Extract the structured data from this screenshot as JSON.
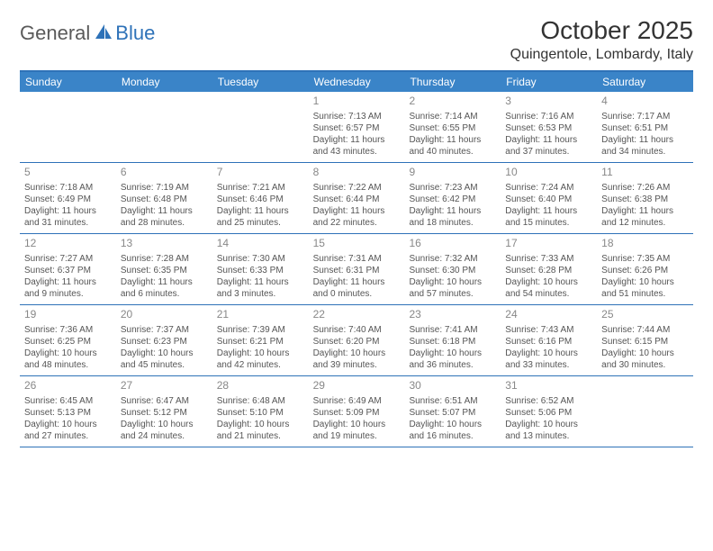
{
  "logo": {
    "text1": "General",
    "text2": "Blue"
  },
  "title": "October 2025",
  "location": "Quingentole, Lombardy, Italy",
  "colors": {
    "header_bg": "#3a84c8",
    "border": "#2e72b8",
    "logo_gray": "#5a5a5a",
    "logo_blue": "#2e72b8",
    "text": "#555555",
    "daynum": "#888888"
  },
  "weekdays": [
    "Sunday",
    "Monday",
    "Tuesday",
    "Wednesday",
    "Thursday",
    "Friday",
    "Saturday"
  ],
  "weeks": [
    [
      {
        "n": "",
        "sr": "",
        "ss": "",
        "dl1": "",
        "dl2": ""
      },
      {
        "n": "",
        "sr": "",
        "ss": "",
        "dl1": "",
        "dl2": ""
      },
      {
        "n": "",
        "sr": "",
        "ss": "",
        "dl1": "",
        "dl2": ""
      },
      {
        "n": "1",
        "sr": "Sunrise: 7:13 AM",
        "ss": "Sunset: 6:57 PM",
        "dl1": "Daylight: 11 hours",
        "dl2": "and 43 minutes."
      },
      {
        "n": "2",
        "sr": "Sunrise: 7:14 AM",
        "ss": "Sunset: 6:55 PM",
        "dl1": "Daylight: 11 hours",
        "dl2": "and 40 minutes."
      },
      {
        "n": "3",
        "sr": "Sunrise: 7:16 AM",
        "ss": "Sunset: 6:53 PM",
        "dl1": "Daylight: 11 hours",
        "dl2": "and 37 minutes."
      },
      {
        "n": "4",
        "sr": "Sunrise: 7:17 AM",
        "ss": "Sunset: 6:51 PM",
        "dl1": "Daylight: 11 hours",
        "dl2": "and 34 minutes."
      }
    ],
    [
      {
        "n": "5",
        "sr": "Sunrise: 7:18 AM",
        "ss": "Sunset: 6:49 PM",
        "dl1": "Daylight: 11 hours",
        "dl2": "and 31 minutes."
      },
      {
        "n": "6",
        "sr": "Sunrise: 7:19 AM",
        "ss": "Sunset: 6:48 PM",
        "dl1": "Daylight: 11 hours",
        "dl2": "and 28 minutes."
      },
      {
        "n": "7",
        "sr": "Sunrise: 7:21 AM",
        "ss": "Sunset: 6:46 PM",
        "dl1": "Daylight: 11 hours",
        "dl2": "and 25 minutes."
      },
      {
        "n": "8",
        "sr": "Sunrise: 7:22 AM",
        "ss": "Sunset: 6:44 PM",
        "dl1": "Daylight: 11 hours",
        "dl2": "and 22 minutes."
      },
      {
        "n": "9",
        "sr": "Sunrise: 7:23 AM",
        "ss": "Sunset: 6:42 PM",
        "dl1": "Daylight: 11 hours",
        "dl2": "and 18 minutes."
      },
      {
        "n": "10",
        "sr": "Sunrise: 7:24 AM",
        "ss": "Sunset: 6:40 PM",
        "dl1": "Daylight: 11 hours",
        "dl2": "and 15 minutes."
      },
      {
        "n": "11",
        "sr": "Sunrise: 7:26 AM",
        "ss": "Sunset: 6:38 PM",
        "dl1": "Daylight: 11 hours",
        "dl2": "and 12 minutes."
      }
    ],
    [
      {
        "n": "12",
        "sr": "Sunrise: 7:27 AM",
        "ss": "Sunset: 6:37 PM",
        "dl1": "Daylight: 11 hours",
        "dl2": "and 9 minutes."
      },
      {
        "n": "13",
        "sr": "Sunrise: 7:28 AM",
        "ss": "Sunset: 6:35 PM",
        "dl1": "Daylight: 11 hours",
        "dl2": "and 6 minutes."
      },
      {
        "n": "14",
        "sr": "Sunrise: 7:30 AM",
        "ss": "Sunset: 6:33 PM",
        "dl1": "Daylight: 11 hours",
        "dl2": "and 3 minutes."
      },
      {
        "n": "15",
        "sr": "Sunrise: 7:31 AM",
        "ss": "Sunset: 6:31 PM",
        "dl1": "Daylight: 11 hours",
        "dl2": "and 0 minutes."
      },
      {
        "n": "16",
        "sr": "Sunrise: 7:32 AM",
        "ss": "Sunset: 6:30 PM",
        "dl1": "Daylight: 10 hours",
        "dl2": "and 57 minutes."
      },
      {
        "n": "17",
        "sr": "Sunrise: 7:33 AM",
        "ss": "Sunset: 6:28 PM",
        "dl1": "Daylight: 10 hours",
        "dl2": "and 54 minutes."
      },
      {
        "n": "18",
        "sr": "Sunrise: 7:35 AM",
        "ss": "Sunset: 6:26 PM",
        "dl1": "Daylight: 10 hours",
        "dl2": "and 51 minutes."
      }
    ],
    [
      {
        "n": "19",
        "sr": "Sunrise: 7:36 AM",
        "ss": "Sunset: 6:25 PM",
        "dl1": "Daylight: 10 hours",
        "dl2": "and 48 minutes."
      },
      {
        "n": "20",
        "sr": "Sunrise: 7:37 AM",
        "ss": "Sunset: 6:23 PM",
        "dl1": "Daylight: 10 hours",
        "dl2": "and 45 minutes."
      },
      {
        "n": "21",
        "sr": "Sunrise: 7:39 AM",
        "ss": "Sunset: 6:21 PM",
        "dl1": "Daylight: 10 hours",
        "dl2": "and 42 minutes."
      },
      {
        "n": "22",
        "sr": "Sunrise: 7:40 AM",
        "ss": "Sunset: 6:20 PM",
        "dl1": "Daylight: 10 hours",
        "dl2": "and 39 minutes."
      },
      {
        "n": "23",
        "sr": "Sunrise: 7:41 AM",
        "ss": "Sunset: 6:18 PM",
        "dl1": "Daylight: 10 hours",
        "dl2": "and 36 minutes."
      },
      {
        "n": "24",
        "sr": "Sunrise: 7:43 AM",
        "ss": "Sunset: 6:16 PM",
        "dl1": "Daylight: 10 hours",
        "dl2": "and 33 minutes."
      },
      {
        "n": "25",
        "sr": "Sunrise: 7:44 AM",
        "ss": "Sunset: 6:15 PM",
        "dl1": "Daylight: 10 hours",
        "dl2": "and 30 minutes."
      }
    ],
    [
      {
        "n": "26",
        "sr": "Sunrise: 6:45 AM",
        "ss": "Sunset: 5:13 PM",
        "dl1": "Daylight: 10 hours",
        "dl2": "and 27 minutes."
      },
      {
        "n": "27",
        "sr": "Sunrise: 6:47 AM",
        "ss": "Sunset: 5:12 PM",
        "dl1": "Daylight: 10 hours",
        "dl2": "and 24 minutes."
      },
      {
        "n": "28",
        "sr": "Sunrise: 6:48 AM",
        "ss": "Sunset: 5:10 PM",
        "dl1": "Daylight: 10 hours",
        "dl2": "and 21 minutes."
      },
      {
        "n": "29",
        "sr": "Sunrise: 6:49 AM",
        "ss": "Sunset: 5:09 PM",
        "dl1": "Daylight: 10 hours",
        "dl2": "and 19 minutes."
      },
      {
        "n": "30",
        "sr": "Sunrise: 6:51 AM",
        "ss": "Sunset: 5:07 PM",
        "dl1": "Daylight: 10 hours",
        "dl2": "and 16 minutes."
      },
      {
        "n": "31",
        "sr": "Sunrise: 6:52 AM",
        "ss": "Sunset: 5:06 PM",
        "dl1": "Daylight: 10 hours",
        "dl2": "and 13 minutes."
      },
      {
        "n": "",
        "sr": "",
        "ss": "",
        "dl1": "",
        "dl2": ""
      }
    ]
  ]
}
